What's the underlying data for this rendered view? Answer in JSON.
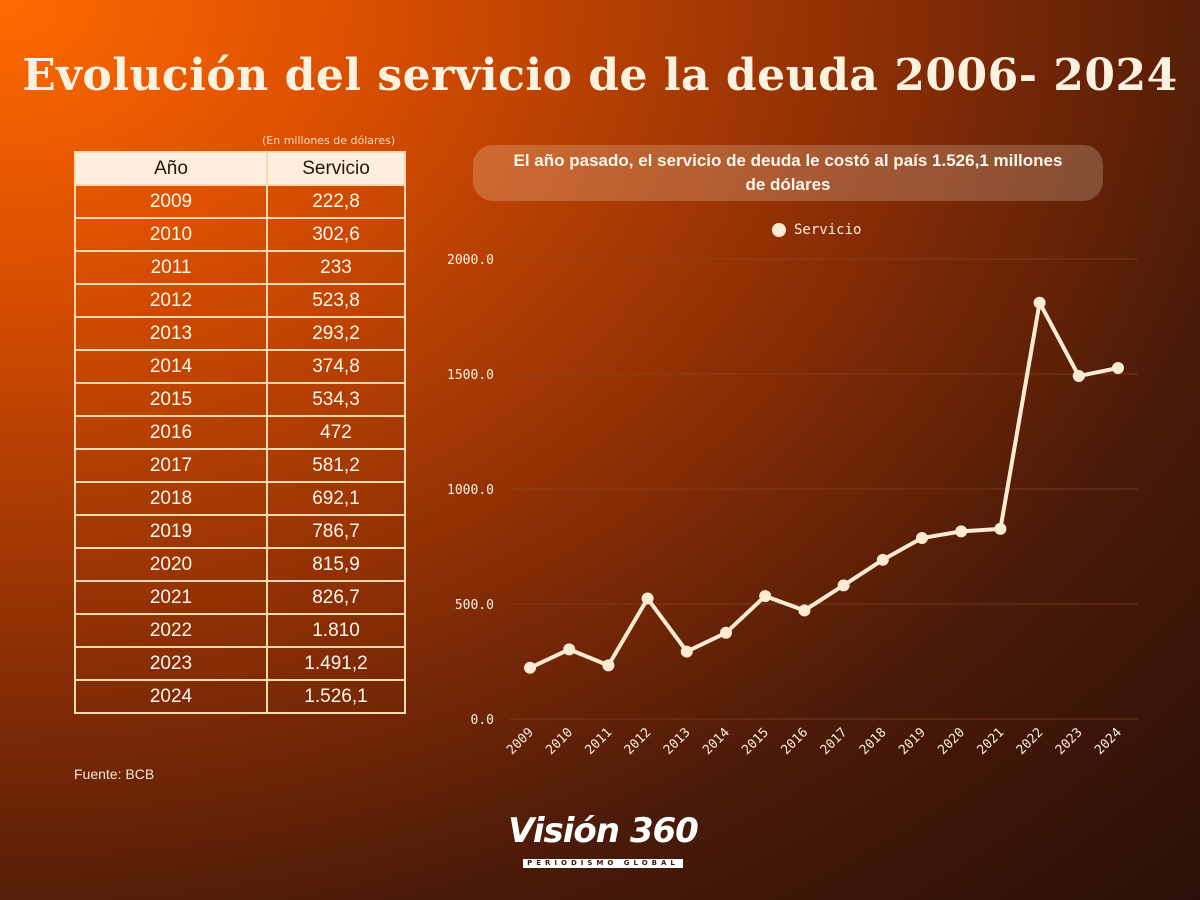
{
  "title": "Evolución del servicio de la deuda 2006- 2024",
  "table": {
    "unit_note": "(En millones de dólares)",
    "headers": [
      "Año",
      "Servicio"
    ],
    "rows": [
      [
        "2009",
        "222,8"
      ],
      [
        "2010",
        "302,6"
      ],
      [
        "2011",
        "233"
      ],
      [
        "2012",
        "523,8"
      ],
      [
        "2013",
        "293,2"
      ],
      [
        "2014",
        "374,8"
      ],
      [
        "2015",
        "534,3"
      ],
      [
        "2016",
        "472"
      ],
      [
        "2017",
        "581,2"
      ],
      [
        "2018",
        "692,1"
      ],
      [
        "2019",
        "786,7"
      ],
      [
        "2020",
        "815,9"
      ],
      [
        "2021",
        "826,7"
      ],
      [
        "2022",
        "1.810"
      ],
      [
        "2023",
        "1.491,2"
      ],
      [
        "2024",
        "1.526,1"
      ]
    ]
  },
  "source": "Fuente: BCB",
  "callout": "El año pasado, el servicio de deuda le costó al país 1.526,1 millones de dólares",
  "logo": {
    "main": "Visión 360",
    "sub": "PERIODISMO GLOBAL"
  },
  "colors": {
    "line": "#fdecd1",
    "grid": "#8a4a2a"
  },
  "chart_data": {
    "type": "line",
    "title": "El año pasado, el servicio de deuda le costó al país 1.526,1 millones de dólares",
    "xlabel": "",
    "ylabel": "",
    "categories": [
      "2009",
      "2010",
      "2011",
      "2012",
      "2013",
      "2014",
      "2015",
      "2016",
      "2017",
      "2018",
      "2019",
      "2020",
      "2021",
      "2022",
      "2023",
      "2024"
    ],
    "series": [
      {
        "name": "Servicio",
        "values": [
          222.8,
          302.6,
          233,
          523.8,
          293.2,
          374.8,
          534.3,
          472,
          581.2,
          692.1,
          786.7,
          815.9,
          826.7,
          1810,
          1491.2,
          1526.1
        ]
      }
    ],
    "ylim": [
      0,
      2000
    ],
    "yticks": [
      0,
      500,
      1000,
      1500,
      2000
    ],
    "ytick_labels": [
      "0.0",
      "500.0",
      "1000.0",
      "1500.0",
      "2000.0"
    ],
    "legend": "top-center",
    "grid": true
  }
}
